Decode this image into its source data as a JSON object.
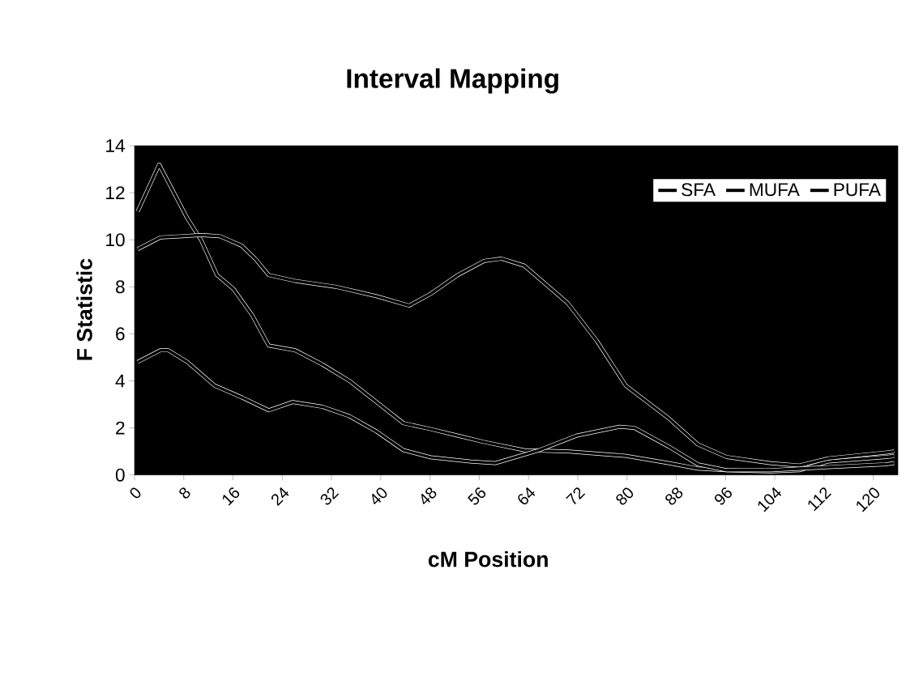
{
  "chart_data": {
    "type": "line",
    "title": "Interval Mapping",
    "xlabel": "cM Position",
    "ylabel": "F Statistic",
    "xlim": [
      0,
      124
    ],
    "xticks": [
      0,
      8,
      16,
      24,
      32,
      40,
      48,
      56,
      64,
      72,
      80,
      88,
      96,
      104,
      112,
      120
    ],
    "ylim": [
      0,
      14
    ],
    "yticks": [
      0,
      2,
      4,
      6,
      8,
      10,
      12,
      14
    ],
    "legend": "top right",
    "grid": false,
    "series": [
      {
        "name": "SFA",
        "color": "#000000",
        "x": [
          0.5,
          4,
          8.6,
          10.8,
          13.4,
          16.1,
          19.1,
          21.8,
          26.1,
          30.5,
          34.9,
          39.3,
          43.7,
          48.1,
          52.5,
          56.8,
          63.3,
          70.4,
          79.8,
          86.8,
          91.5,
          96.2,
          103.3,
          108,
          112.6,
          122,
          123.4
        ],
        "values": [
          11.2,
          13.2,
          10.9,
          10,
          8.5,
          7.9,
          6.8,
          5.5,
          5.3,
          4.7,
          4,
          3.1,
          2.2,
          1.95,
          1.67,
          1.4,
          1.05,
          1,
          0.81,
          0.5,
          0.27,
          0.2,
          0.15,
          0.2,
          0.57,
          0.76,
          0.8
        ]
      },
      {
        "name": "MUFA",
        "color": "#000000",
        "x": [
          0.5,
          4.2,
          7.7,
          10.8,
          13.9,
          17.4,
          19.6,
          21.8,
          26.1,
          32.7,
          39.3,
          44.6,
          48.1,
          52.5,
          56.8,
          59.6,
          63.3,
          70.4,
          75.1,
          79.8,
          86.8,
          91.5,
          96.2,
          103.3,
          108,
          112.6,
          122,
          123.4
        ],
        "values": [
          9.6,
          10.1,
          10.15,
          10.2,
          10.15,
          9.75,
          9.2,
          8.5,
          8.25,
          8,
          7.6,
          7.2,
          7.7,
          8.5,
          9.1,
          9.2,
          8.9,
          7.3,
          5.7,
          3.8,
          2.4,
          1.3,
          0.76,
          0.5,
          0.4,
          0.7,
          0.95,
          1
        ]
      },
      {
        "name": "PUFA",
        "color": "#000000",
        "x": [
          0.5,
          4.2,
          5.5,
          8.6,
          13,
          17.4,
          21.8,
          25.7,
          30.5,
          34.9,
          39.3,
          43.7,
          48.1,
          54.6,
          58.6,
          65.7,
          71.8,
          78.8,
          81.2,
          86.8,
          91.5,
          96.2,
          103.3,
          112.6,
          122,
          123.4
        ],
        "values": [
          4.8,
          5.3,
          5.3,
          4.8,
          3.8,
          3.3,
          2.75,
          3.1,
          2.9,
          2.5,
          1.85,
          1.05,
          0.75,
          0.57,
          0.5,
          1.05,
          1.67,
          2.05,
          2,
          1.2,
          0.45,
          0.2,
          0.2,
          0.33,
          0.45,
          0.5
        ]
      }
    ]
  }
}
